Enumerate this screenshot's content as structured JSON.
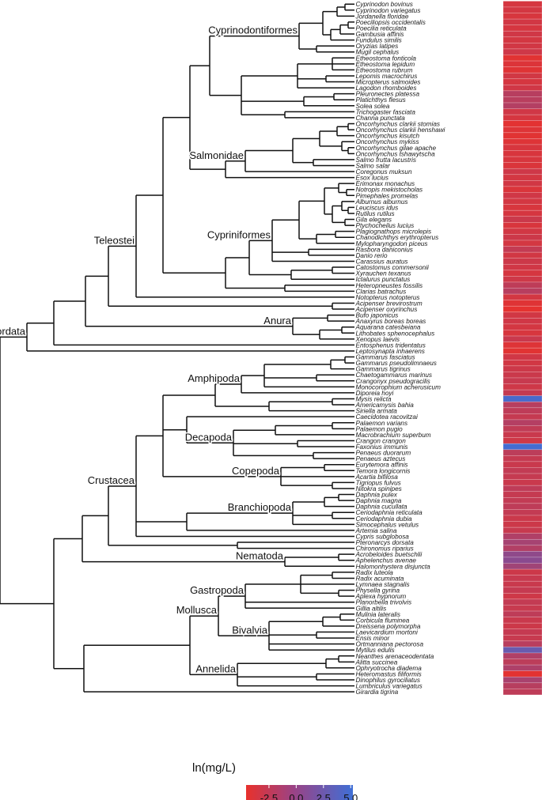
{
  "species": [
    "Cyprinodon bovinus",
    "Cyprinodon variegatus",
    "Jordanella floridae",
    "Poeciliopsis occidentalis",
    "Poecilia reticulata",
    "Gambusia affinis",
    "Fundulus similis",
    "Oryzias latipes",
    "Mugil cephalus",
    "Etheostoma fonticola",
    "Etheostoma lepidum",
    "Etheostoma rubrum",
    "Lepomis macrochirus",
    "Micropterus salmoides",
    "Lagodon rhomboides",
    "Pleuronectes platessa",
    "Platichthys flesus",
    "Solea solea",
    "Trichogaster fasciata",
    "Channa punctata",
    "Oncorhynchus clarkii stomias",
    "Oncorhynchus clarkii henshawi",
    "Oncorhynchus kisutch",
    "Oncorhynchus mykiss",
    "Oncorhynchus gilae apache",
    "Oncorhynchus tshawytscha",
    "Salmo frutta lacustris",
    "Salmo salar",
    "Coregonus muksun",
    "Esox lucius",
    "Erimonax monachus",
    "Notropis mekistocholas",
    "Pimephales promelas",
    "Alburnus alburnus",
    "Leuciscus idus",
    "Rutilus rutilus",
    "Gila elegans",
    "Ptychocheilus lucius",
    "Plagiognathops microlepis",
    "Chanodichthys erythropterus",
    "Mylopharyngodon piceus",
    "Rasbora daniconius",
    "Danio rerio",
    "Carassius auratus",
    "Catostomus commersonii",
    "Xyrauchen texanus",
    "Ictalurus punctatus",
    "Heteropneustes fossilis",
    "Clarias batrachus",
    "Notopterus notopterus",
    "Acipenser brevirostrum",
    "Acipenser oxyrinchus",
    "Bufo japonicus",
    "Anaxyrus boreas boreas",
    "Aquarana catesbeiana",
    "Lithobates sphenocephalus",
    "Xenopus laevis",
    "Entosphenus tridentatus",
    "Leptosynapta inhaerens",
    "Gammarus fasciatus",
    "Gammarus pseudolimnaeus",
    "Gammarus tigrinus",
    "Chaetogammarus marinus",
    "Crangonyx pseudogracilis",
    "Monocorophium acherusicum",
    "Diporeia hoyi",
    "Mysis relicta",
    "Americamysis bahia",
    "Siriella armata",
    "Caecidotea racovitzai",
    "Palaemon varians",
    "Palaemon pugio",
    "Macrobrachium superbum",
    "Crangon crangon",
    "Faxonius immunis",
    "Penaeus duorarum",
    "Penaeus aztecus",
    "Eurytemora affinis",
    "Temora longicornis",
    "Acartia bifilosa",
    "Tigriopus fulvus",
    "Nitokra spinipes",
    "Daphnia pulex",
    "Daphnia magna",
    "Daphnia cucullata",
    "Ceriodaphnia reticulata",
    "Ceriodaphnia dubia",
    "Simocephalus vetulus",
    "Artemia salina",
    "Cypris subglobosa",
    "Pteronarcys dorsata",
    "Chironomus riparius",
    "Acrobeloides buetschlii",
    "Aphelenchus avenae",
    "Halomonhystera disjuncta",
    "Radix luteola",
    "Radix acuminata",
    "Lymnaea stagnalis",
    "Physella gyrina",
    "Aplexa hypnorum",
    "Planorbella trivolvis",
    "Gillia altilis",
    "Mulinia lateralis",
    "Corbicula fluminea",
    "Dreissena polymorpha",
    "Laevicardium mortoni",
    "Ensis minor",
    "Ortmanniana pectorosa",
    "Mytilus edulis",
    "Neanthes arenaceodentata",
    "Alitta succinea",
    "Ophryotrocha diadema",
    "Heteromastus filiformis",
    "Dinophilus gyrociliatus",
    "Lumbriculus variegatus",
    "Girardia tigrina"
  ],
  "heat_values": [
    -3.5,
    -3.4,
    -3.6,
    -3.3,
    -3.5,
    -3.2,
    -3.4,
    -3.3,
    -3.1,
    -4.2,
    -3.9,
    -4.1,
    -3.3,
    -3.5,
    -3.2,
    -1.8,
    -1.9,
    -1.6,
    -3.2,
    -3.5,
    -4.3,
    -4.0,
    -4.2,
    -4.0,
    -3.6,
    -3.7,
    -3.6,
    -3.8,
    -3.1,
    -3.4,
    -3.3,
    -3.8,
    -3.2,
    -3.4,
    -3.6,
    -3.5,
    -2.9,
    -3.7,
    -3.3,
    -3.0,
    -3.4,
    -2.5,
    -3.3,
    -3.0,
    -3.2,
    -3.5,
    -3.1,
    -2.2,
    -1.8,
    -3.4,
    -4.1,
    -4.4,
    -3.3,
    -3.2,
    -3.4,
    -3.6,
    -2.8,
    -4.0,
    -4.2,
    -3.2,
    -3.3,
    -3.0,
    -2.9,
    -2.7,
    -3.1,
    -2.6,
    4.6,
    -1.8,
    -2.2,
    -2.6,
    -1.6,
    -2.3,
    -2.8,
    -3.1,
    4.9,
    -2.1,
    -2.6,
    -2.8,
    -2.4,
    -2.6,
    -2.8,
    -2.2,
    -2.6,
    -2.4,
    -2.2,
    -2.5,
    -2.9,
    -3.0,
    -2.7,
    -1.4,
    -0.8,
    -1.5,
    0.5,
    0.8,
    -0.5,
    -3.0,
    -2.7,
    -2.8,
    -2.6,
    -3.1,
    -2.5,
    -2.7,
    -2.2,
    -2.8,
    -3.0,
    -2.6,
    -2.7,
    -1.9,
    2.8,
    -1.4,
    -2.1,
    -1.3,
    -4.3,
    -1.0,
    -1.8,
    -2.2
  ],
  "clade_labels": [
    "Cyprinodontiformes",
    "Salmonidae",
    "Cypriniformes",
    "Teleostei",
    "Chordata",
    "Anura",
    "Amphipoda",
    "Decapoda",
    "Copepoda",
    "Branchiopoda",
    "Crustacea",
    "Nematoda",
    "Gastropoda",
    "Mollusca",
    "Bivalvia",
    "Annelida"
  ],
  "legend": {
    "title": "ln(mg/L)",
    "ticks": [
      "-2.5",
      "0.0",
      "2.5",
      "5.0"
    ],
    "min": -4.6,
    "max": 5.2,
    "tick_values": [
      -2.5,
      0.0,
      2.5,
      5.0
    ],
    "colors": [
      "#e8312c",
      "#8a4a8f",
      "#3f6fd6"
    ]
  }
}
